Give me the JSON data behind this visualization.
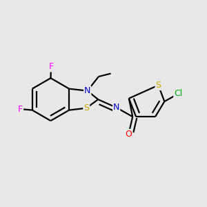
{
  "background_color": "#e8e8e8",
  "atom_colors": {
    "F": "#ff00ff",
    "N": "#0000cc",
    "O": "#ff0000",
    "S": "#ccaa00",
    "Cl": "#00aa00",
    "C": "#000000"
  },
  "bond_color": "#000000",
  "bond_width": 1.6,
  "font_size_atom": 9
}
